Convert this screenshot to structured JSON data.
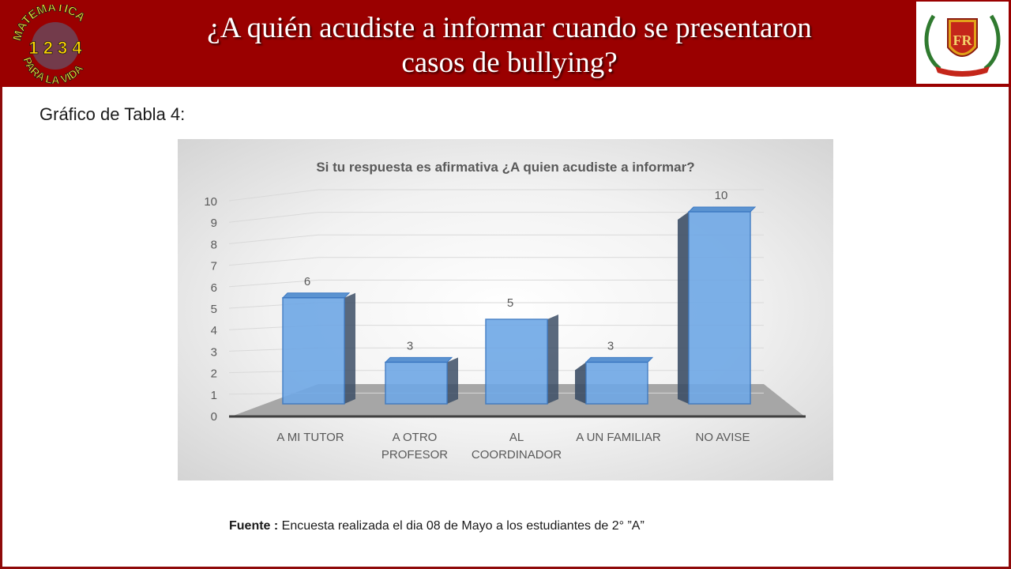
{
  "header": {
    "title_line1": "¿A quién acudiste a informar cuando se presentaron",
    "title_line2": "casos de bullying?",
    "left_logo": {
      "line1": "MATEMÁTICA",
      "line2": "PARA LA VIDA",
      "digits": "1 2 3 4"
    },
    "right_logo": {
      "name": "school-crest",
      "initials": "FR"
    }
  },
  "subtitle": "Gráfico de Tabla 4:",
  "source": {
    "label": "Fuente :",
    "text": "Encuesta realizada el dia 08 de Mayo a los estudiantes de 2° ”A”"
  },
  "colors": {
    "header_bg": "#9a0000",
    "bar_front": "#6fa8e6",
    "bar_side": "#3d4f66",
    "bar_top": "#5b93d1"
  },
  "chart_data": {
    "type": "bar",
    "title": "Si tu respuesta es afirmativa ¿A quien acudiste a informar?",
    "categories": [
      [
        "A MI TUTOR"
      ],
      [
        "A OTRO",
        "PROFESOR"
      ],
      [
        "AL",
        "COORDINADOR"
      ],
      [
        "A UN FAMILIAR"
      ],
      [
        "NO AVISE"
      ]
    ],
    "values": [
      6,
      3,
      5,
      3,
      10
    ],
    "ylim": [
      0,
      10
    ],
    "yticks": [
      0,
      1,
      2,
      3,
      4,
      5,
      6,
      7,
      8,
      9,
      10
    ],
    "data_labels": true,
    "grid": true,
    "style": "3d-perspective"
  }
}
